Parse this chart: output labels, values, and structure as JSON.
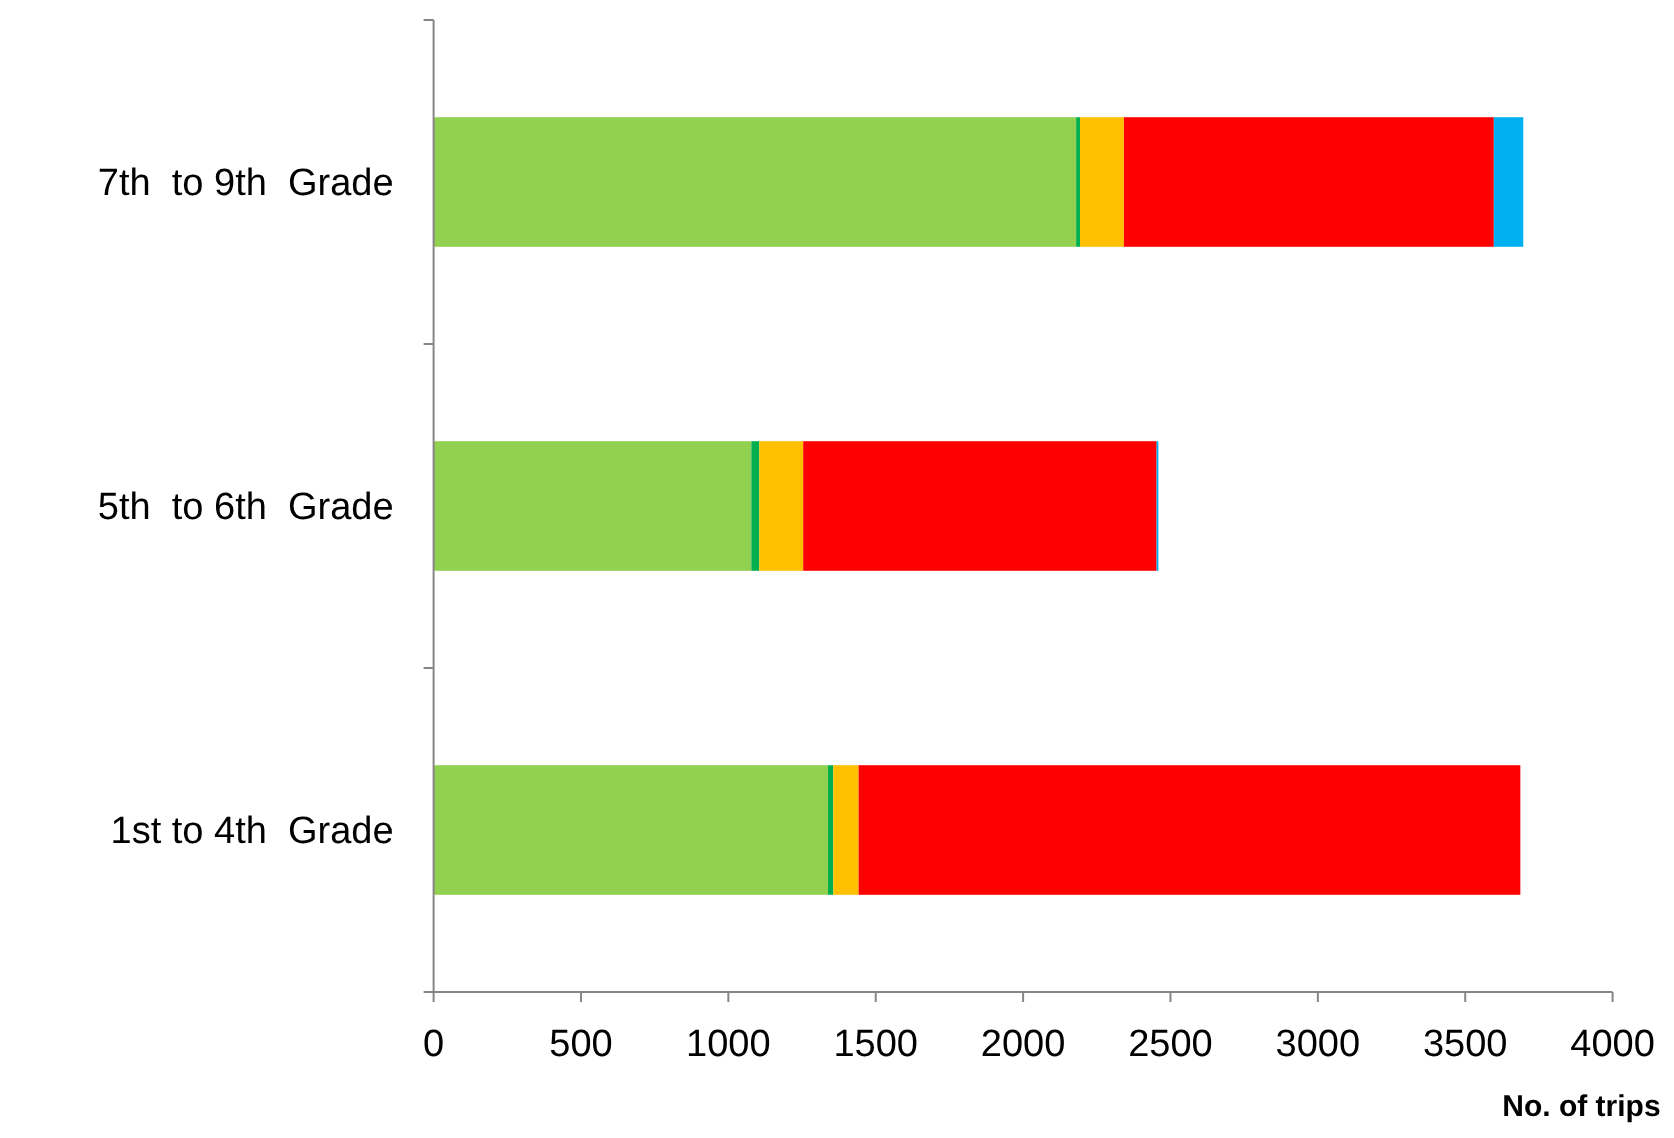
{
  "chart_data": {
    "type": "bar",
    "orientation": "horizontal",
    "stacked": true,
    "xlabel": "No. of trips",
    "categories": [
      "7th  to 9th  Grade",
      "5th  to 6th  Grade",
      "1st to 4th  Grade"
    ],
    "series": [
      {
        "color": "#92d050",
        "values": [
          2180,
          1078,
          1338
        ]
      },
      {
        "color": "#00b050",
        "values": [
          13,
          27,
          18
        ]
      },
      {
        "color": "#ffc000",
        "values": [
          149,
          149,
          86
        ]
      },
      {
        "color": "#ff0000",
        "values": [
          1255,
          1199,
          2245
        ]
      },
      {
        "color": "#00b0f0",
        "values": [
          100,
          6,
          0
        ]
      }
    ],
    "xlim": [
      0,
      4000
    ],
    "xticks": [
      0,
      500,
      1000,
      1500,
      2000,
      2500,
      3000,
      3500,
      4000
    ]
  }
}
